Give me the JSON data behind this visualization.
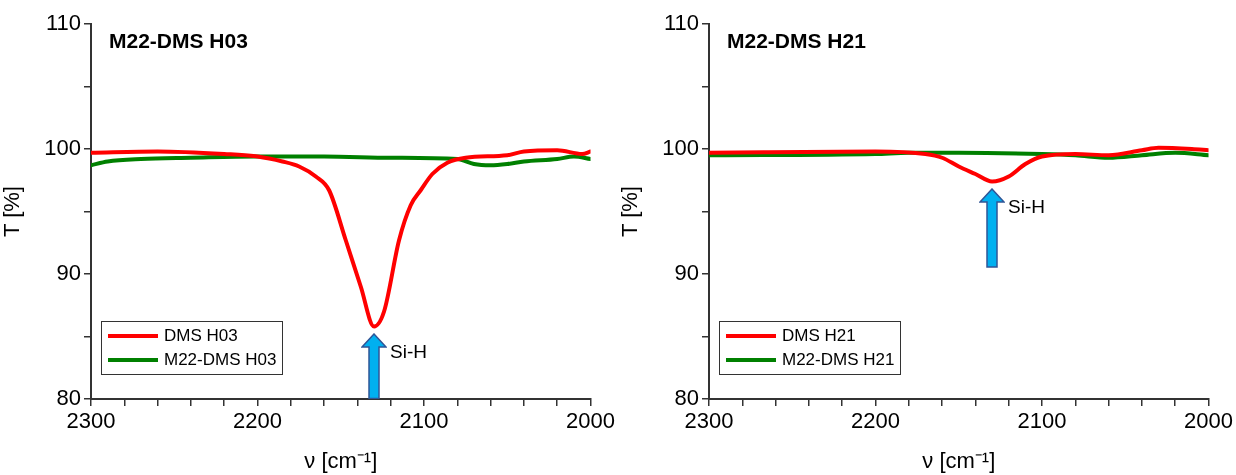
{
  "chart_data": [
    {
      "type": "line",
      "title": "M22-DMS H03",
      "xlabel": "ν [cm⁻¹]",
      "ylabel": "T [%]",
      "xlim": [
        2300,
        2000
      ],
      "ylim": [
        80,
        110
      ],
      "xticks": [
        2300,
        {
          "value": 2280,
          "label": null
        },
        {
          "value": 2260,
          "label": null
        },
        {
          "value": 2240,
          "label": null
        },
        {
          "value": 2220,
          "label": null
        },
        2200,
        {
          "value": 2180,
          "label": null
        },
        {
          "value": 2160,
          "label": null
        },
        {
          "value": 2140,
          "label": null
        },
        {
          "value": 2120,
          "label": null
        },
        2100,
        {
          "value": 2080,
          "label": null
        },
        {
          "value": 2060,
          "label": null
        },
        {
          "value": 2040,
          "label": null
        },
        {
          "value": 2020,
          "label": null
        },
        2000
      ],
      "yticks": [
        80,
        {
          "value": 85,
          "label": null
        },
        90,
        {
          "value": 95,
          "label": null
        },
        100,
        {
          "value": 105,
          "label": null
        },
        110
      ],
      "grid": false,
      "legend": "bottom left",
      "marker": "none",
      "line_style": "solid",
      "annotations": [
        "Si-H"
      ],
      "series": [
        {
          "name": "DMS H03",
          "color": "#ff0000",
          "x": [
            2300,
            2260,
            2220,
            2200,
            2185,
            2175,
            2165,
            2157,
            2147,
            2138,
            2130,
            2124,
            2115,
            2108,
            2102,
            2095,
            2086,
            2075,
            2050,
            2040,
            2020,
            2005,
            2000
          ],
          "values": [
            99.7,
            99.8,
            99.6,
            99.4,
            99.0,
            98.6,
            97.8,
            96.7,
            92.7,
            89,
            85.8,
            87,
            92.7,
            95.5,
            96.7,
            98,
            98.9,
            99.3,
            99.5,
            99.8,
            99.9,
            99.6,
            99.8
          ]
        },
        {
          "name": "M22-DMS H03",
          "color": "#008000",
          "x": [
            2300,
            2290,
            2270,
            2240,
            2200,
            2160,
            2120,
            2080,
            2070,
            2060,
            2050,
            2040,
            2020,
            2010,
            2000
          ],
          "values": [
            98.7,
            99.0,
            99.2,
            99.3,
            99.4,
            99.4,
            99.3,
            99.2,
            98.8,
            98.7,
            98.8,
            99.0,
            99.2,
            99.4,
            99.2
          ]
        }
      ]
    },
    {
      "type": "line",
      "title": "M22-DMS H21",
      "xlabel": "ν [cm⁻¹]",
      "ylabel": "T [%]",
      "xlim": [
        2300,
        2000
      ],
      "ylim": [
        80,
        110
      ],
      "xticks": [
        2300,
        {
          "value": 2280,
          "label": null
        },
        {
          "value": 2260,
          "label": null
        },
        {
          "value": 2240,
          "label": null
        },
        {
          "value": 2220,
          "label": null
        },
        2200,
        {
          "value": 2180,
          "label": null
        },
        {
          "value": 2160,
          "label": null
        },
        {
          "value": 2140,
          "label": null
        },
        {
          "value": 2120,
          "label": null
        },
        2100,
        {
          "value": 2080,
          "label": null
        },
        {
          "value": 2060,
          "label": null
        },
        {
          "value": 2040,
          "label": null
        },
        {
          "value": 2020,
          "label": null
        },
        2000
      ],
      "yticks": [
        80,
        {
          "value": 85,
          "label": null
        },
        90,
        {
          "value": 95,
          "label": null
        },
        100,
        {
          "value": 105,
          "label": null
        },
        110
      ],
      "grid": false,
      "legend": "bottom left",
      "marker": "none",
      "line_style": "solid",
      "annotations": [
        "Si-H"
      ],
      "series": [
        {
          "name": "DMS H21",
          "color": "#ff0000",
          "x": [
            2300,
            2200,
            2170,
            2160,
            2150,
            2140,
            2130,
            2120,
            2110,
            2100,
            2080,
            2060,
            2040,
            2030,
            2010,
            2000
          ],
          "values": [
            99.7,
            99.8,
            99.6,
            99.3,
            98.6,
            98,
            97.4,
            97.8,
            98.8,
            99.4,
            99.6,
            99.5,
            99.9,
            100.1,
            100.0,
            99.9
          ]
        },
        {
          "name": "M22-DMS H21",
          "color": "#008000",
          "x": [
            2300,
            2200,
            2180,
            2150,
            2100,
            2080,
            2060,
            2040,
            2020,
            2000
          ],
          "values": [
            99.5,
            99.6,
            99.7,
            99.7,
            99.6,
            99.5,
            99.3,
            99.5,
            99.7,
            99.5
          ]
        }
      ]
    }
  ]
}
